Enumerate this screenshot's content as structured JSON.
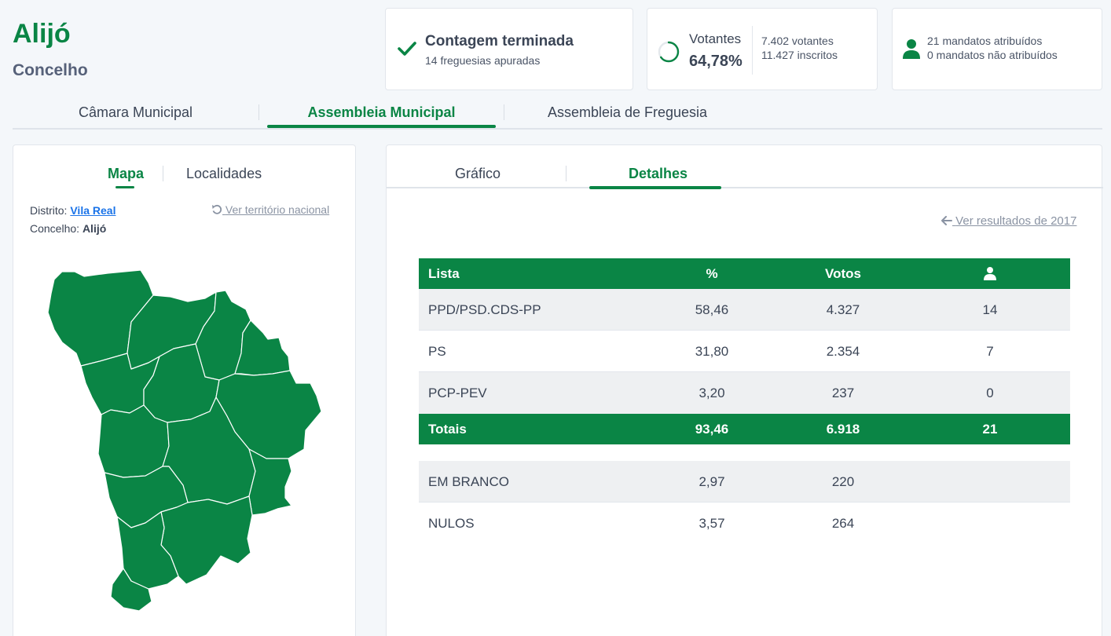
{
  "header": {
    "title": "Alijó",
    "subtitle": "Concelho"
  },
  "status_card": {
    "main": "Contagem terminada",
    "sub": "14 freguesias apuradas"
  },
  "voters_card": {
    "label": "Votantes",
    "percent": "64,78%",
    "turnout_fraction": 0.6478,
    "voters": "7.402 votantes",
    "registered": "11.427 inscritos"
  },
  "mandates_card": {
    "assigned": "21 mandatos atribuídos",
    "unassigned": "0 mandatos não atribuídos"
  },
  "main_tabs": [
    {
      "label": "Câmara Municipal",
      "active": false
    },
    {
      "label": "Assembleia Municipal",
      "active": true
    },
    {
      "label": "Assembleia de Freguesia",
      "active": false
    }
  ],
  "left_panel": {
    "tabs": [
      {
        "label": "Mapa",
        "active": true
      },
      {
        "label": "Localidades",
        "active": false
      }
    ],
    "district_label": "Distrito:",
    "district_value": "Vila Real",
    "municipality_label": "Concelho:",
    "municipality_value": "Alijó",
    "national_link": "Ver território nacional"
  },
  "right_panel": {
    "tabs": [
      {
        "label": "Gráfico",
        "active": false
      },
      {
        "label": "Detalhes",
        "active": true
      }
    ],
    "previous_link": "Ver resultados de 2017"
  },
  "table": {
    "headers": {
      "list": "Lista",
      "percent": "%",
      "votes": "Votos"
    },
    "rows": [
      {
        "name": "PPD/PSD.CDS-PP",
        "percent": "58,46",
        "votes": "4.327",
        "mandates": "14"
      },
      {
        "name": "PS",
        "percent": "31,80",
        "votes": "2.354",
        "mandates": "7"
      },
      {
        "name": "PCP-PEV",
        "percent": "3,20",
        "votes": "237",
        "mandates": "0"
      }
    ],
    "totals": {
      "name": "Totais",
      "percent": "93,46",
      "votes": "6.918",
      "mandates": "21"
    },
    "other": [
      {
        "name": "EM BRANCO",
        "percent": "2,97",
        "votes": "220"
      },
      {
        "name": "NULOS",
        "percent": "3,57",
        "votes": "264"
      }
    ]
  },
  "colors": {
    "accent": "#0a8545",
    "text": "#3b4556",
    "link": "#1a73e8"
  }
}
